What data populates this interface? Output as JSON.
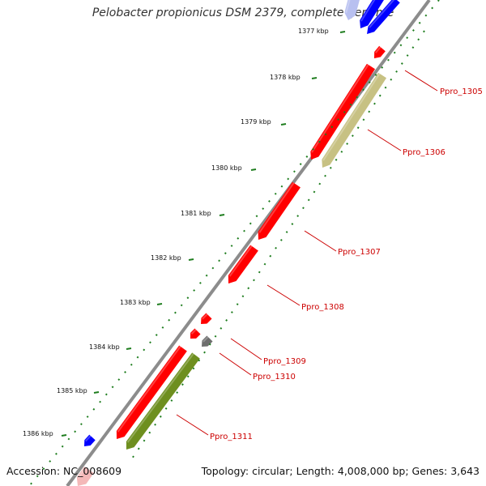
{
  "title": "Pelobacter propionicus DSM 2379, complete genome",
  "footer": {
    "accession": "Accession: NC_008609",
    "summary": "Topology: circular; Length: 4,008,000 bp; Genes: 3,643"
  },
  "colors": {
    "backbone": "#8c8c8c",
    "tick_green": "#1e7d1e",
    "gene_red": "#ff0000",
    "gene_blue": "#0000ff",
    "gene_khaki": "#c7c183",
    "gene_olive": "#6e8f1f",
    "gene_gray": "#6e6e6e",
    "label_red": "#cc0000"
  },
  "scale_ticks": [
    {
      "label": "1377 kbp"
    },
    {
      "label": "1378 kbp"
    },
    {
      "label": "1379 kbp"
    },
    {
      "label": "1380 kbp"
    },
    {
      "label": "1381 kbp"
    },
    {
      "label": "1382 kbp"
    },
    {
      "label": "1383 kbp"
    },
    {
      "label": "1384 kbp"
    },
    {
      "label": "1385 kbp"
    },
    {
      "label": "1386 kbp"
    }
  ],
  "gene_labels": [
    {
      "label": "Ppro_1305"
    },
    {
      "label": "Ppro_1306"
    },
    {
      "label": "Ppro_1307"
    },
    {
      "label": "Ppro_1308"
    },
    {
      "label": "Ppro_1309"
    },
    {
      "label": "Ppro_1310"
    },
    {
      "label": "Ppro_1311"
    }
  ]
}
